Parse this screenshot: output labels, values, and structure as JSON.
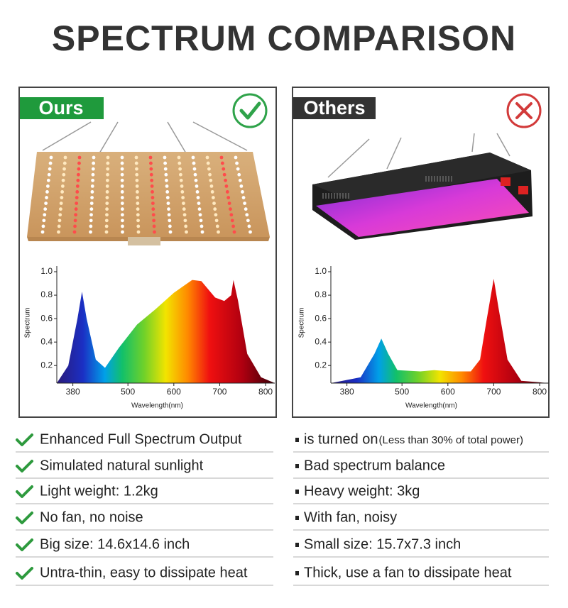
{
  "title": "SPECTRUM COMPARISON",
  "panels": [
    {
      "label": "Ours",
      "chart": {
        "type": "area",
        "ylabel": "Spectrum",
        "xlabel": "Wavelength(nm)",
        "xlim": [
          345,
          820
        ],
        "ylim": [
          0.05,
          1.0
        ],
        "xticks": [
          380,
          500,
          600,
          700,
          800
        ],
        "yticks": [
          {
            "value": 1,
            "label": "1.0"
          },
          0.8,
          0.6,
          0.4,
          0.2
        ],
        "x": [
          345,
          370,
          390,
          400,
          410,
          430,
          450,
          480,
          520,
          560,
          600,
          640,
          660,
          690,
          710,
          725,
          730,
          740,
          760,
          790,
          820
        ],
        "values": [
          0.05,
          0.2,
          0.6,
          0.83,
          0.6,
          0.25,
          0.18,
          0.35,
          0.55,
          0.68,
          0.82,
          0.93,
          0.92,
          0.78,
          0.75,
          0.8,
          0.93,
          0.75,
          0.3,
          0.1,
          0.05
        ]
      },
      "features": [
        "Enhanced Full Spectrum Output",
        "Simulated natural sunlight",
        "Light weight: 1.2kg",
        "No fan, no noise",
        "Big size: 14.6x14.6 inch",
        "Untra-thin, easy to dissipate heat"
      ]
    },
    {
      "label": "Others",
      "chart": {
        "type": "area",
        "ylabel": "Spectrum",
        "xlabel": "Wavelength(nm)",
        "xlim": [
          345,
          820
        ],
        "ylim": [
          0.05,
          1.0
        ],
        "xticks": [
          380,
          500,
          600,
          700,
          800
        ],
        "yticks": [
          {
            "value": 1,
            "label": "1.0"
          },
          0.8,
          0.6,
          0.4,
          0.2
        ],
        "x": [
          345,
          410,
          440,
          455,
          470,
          490,
          540,
          570,
          610,
          650,
          670,
          685,
          700,
          710,
          730,
          760,
          820
        ],
        "values": [
          0.05,
          0.1,
          0.3,
          0.43,
          0.3,
          0.16,
          0.15,
          0.16,
          0.15,
          0.15,
          0.25,
          0.6,
          0.94,
          0.7,
          0.25,
          0.07,
          0.05
        ]
      },
      "features": [
        "is turned on",
        "Bad spectrum balance",
        "Heavy weight: 3kg",
        "With fan, noisy",
        "Small size: 15.7x7.3 inch",
        "Thick, use a fan to dissipate heat"
      ],
      "note": "(Less than 30% of total power)"
    }
  ]
}
